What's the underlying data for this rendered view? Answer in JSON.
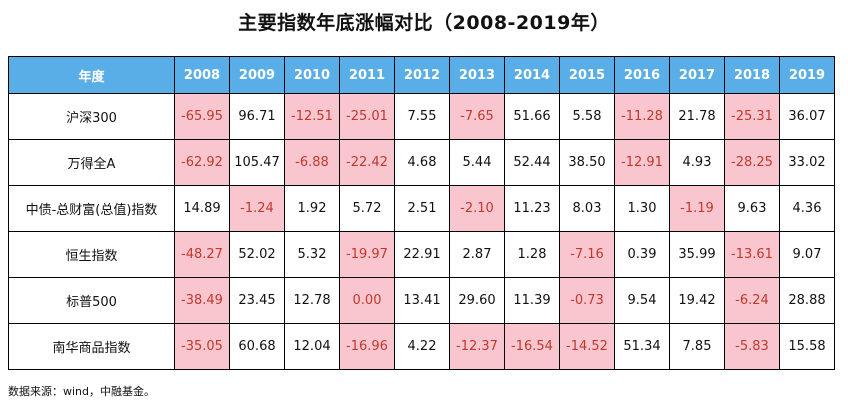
{
  "title": "主要指数年底涨幅对比（2008-2019年）",
  "table": {
    "header_label": "年度",
    "years": [
      "2008",
      "2009",
      "2010",
      "2011",
      "2012",
      "2013",
      "2014",
      "2015",
      "2016",
      "2017",
      "2018",
      "2019"
    ],
    "rows": [
      {
        "name": "沪深300",
        "values": [
          "-65.95",
          "96.71",
          "-12.51",
          "-25.01",
          "7.55",
          "-7.65",
          "51.66",
          "5.58",
          "-11.28",
          "21.78",
          "-25.31",
          "36.07"
        ]
      },
      {
        "name": "万得全A",
        "values": [
          "-62.92",
          "105.47",
          "-6.88",
          "-22.42",
          "4.68",
          "5.44",
          "52.44",
          "38.50",
          "-12.91",
          "4.93",
          "-28.25",
          "33.02"
        ]
      },
      {
        "name": "中债-总财富(总值)指数",
        "values": [
          "14.89",
          "-1.24",
          "1.92",
          "5.72",
          "2.51",
          "-2.10",
          "11.23",
          "8.03",
          "1.30",
          "-1.19",
          "9.63",
          "4.36"
        ]
      },
      {
        "name": "恒生指数",
        "values": [
          "-48.27",
          "52.02",
          "5.32",
          "-19.97",
          "22.91",
          "2.87",
          "1.28",
          "-7.16",
          "0.39",
          "35.99",
          "-13.61",
          "9.07"
        ]
      },
      {
        "name": "标普500",
        "values": [
          "-38.49",
          "23.45",
          "12.78",
          "0.00",
          "13.41",
          "29.60",
          "11.39",
          "-0.73",
          "9.54",
          "19.42",
          "-6.24",
          "28.88"
        ]
      },
      {
        "name": "南华商品指数",
        "values": [
          "-35.05",
          "60.68",
          "12.04",
          "-16.96",
          "4.22",
          "-12.37",
          "-16.54",
          "-14.52",
          "51.34",
          "7.85",
          "-5.83",
          "15.58"
        ]
      }
    ],
    "highlighted": [
      [
        0,
        3,
        10,
        2,
        5,
        8
      ],
      [
        0,
        2,
        3,
        8,
        10
      ],
      [
        1,
        5,
        9
      ],
      [
        0,
        3,
        7,
        10
      ],
      [
        0,
        3,
        7,
        10
      ],
      [
        0,
        3,
        5,
        6,
        7,
        10
      ]
    ]
  },
  "colors": {
    "header_bg": "#5aaee8",
    "header_text": "#ffffff",
    "highlight_bg": "#f9c6cf",
    "highlight_text": "#c0392b"
  },
  "source": "数据来源：wind，中融基金。"
}
